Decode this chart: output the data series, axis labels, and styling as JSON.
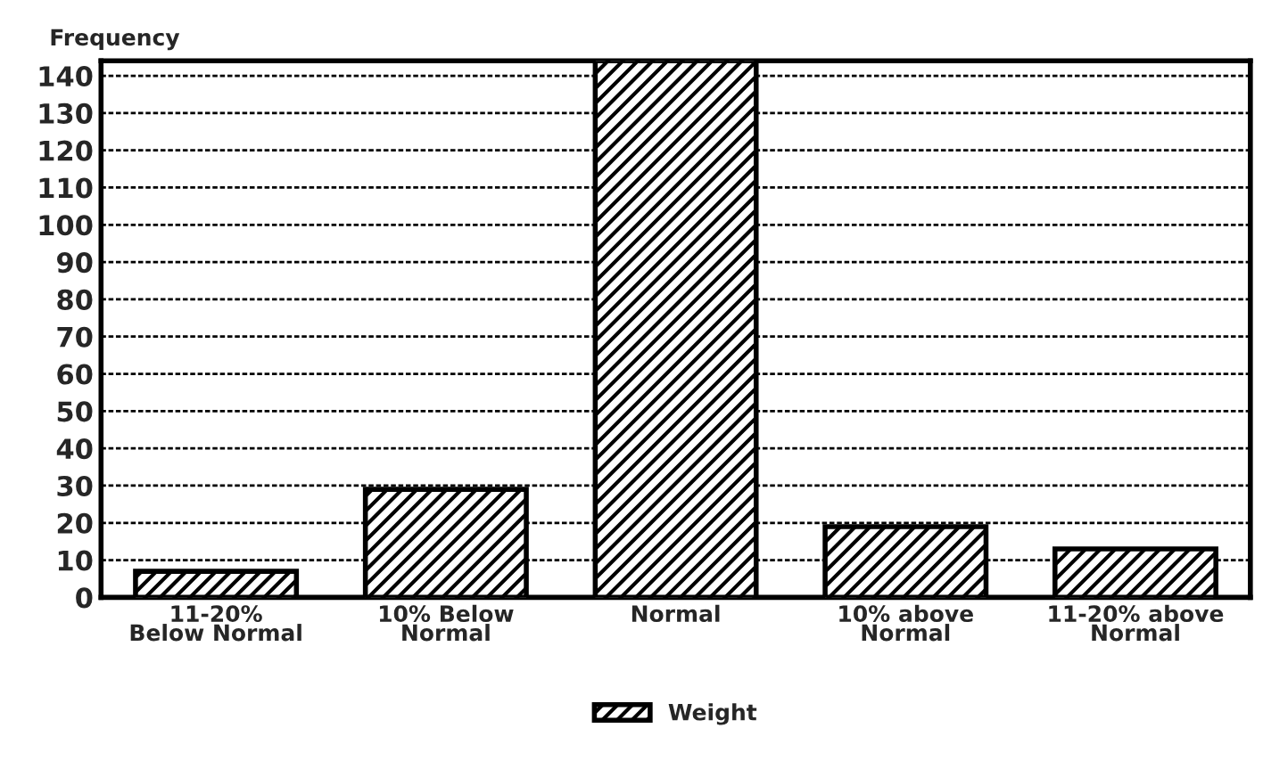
{
  "chart_data": {
    "type": "bar",
    "ylabel": "Frequency",
    "categories": [
      "11-20%\nBelow Normal",
      "10% Below\nNormal",
      "Normal",
      "10% above\nNormal",
      "11-20% above\nNormal"
    ],
    "series": [
      {
        "name": "Weight",
        "color": "#000000",
        "values": [
          7,
          29,
          144,
          19,
          13
        ]
      }
    ],
    "ylim": [
      0,
      144
    ],
    "yticks": [
      0,
      10,
      20,
      30,
      40,
      50,
      60,
      70,
      80,
      90,
      100,
      110,
      120,
      130,
      140
    ],
    "grid": "y",
    "legend": "bottom"
  }
}
